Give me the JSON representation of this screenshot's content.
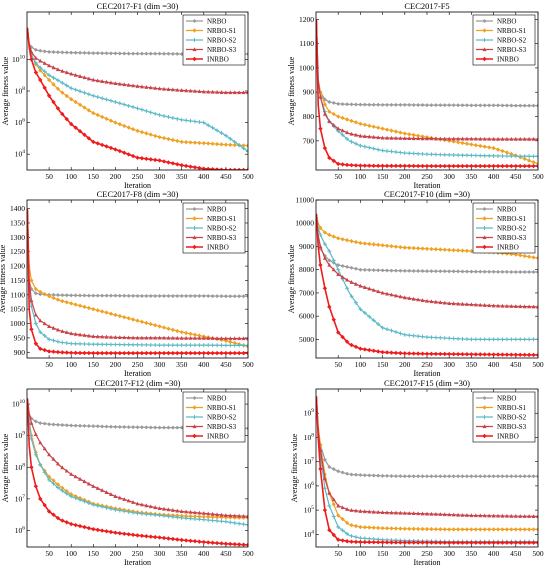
{
  "colors": {
    "NRBO": "#9a9a9a",
    "NRBO-S1": "#f0a020",
    "NRBO-S2": "#5cbac6",
    "NRBO-S3": "#c8434a",
    "INRBO": "#ee1c1c"
  },
  "legend_entries": [
    "NRBO",
    "NRBO-S1",
    "NRBO-S2",
    "NRBO-S3",
    "INRBO"
  ],
  "chart_data": [
    {
      "type": "line",
      "title": "CEC2017-F1 (dim =30)",
      "xlabel": "Iteration",
      "ylabel": "Average fitness value",
      "xlim": [
        0,
        500
      ],
      "yscale": "log",
      "ylim": [
        1000,
        10000000000000
      ],
      "xticks": [
        50,
        100,
        150,
        200,
        250,
        300,
        350,
        400,
        450,
        500
      ],
      "yticks": [
        {
          "value": 10000,
          "base": "10",
          "exp": "4"
        },
        {
          "value": 1000000,
          "base": "10",
          "exp": "6"
        },
        {
          "value": 100000000,
          "base": "10",
          "exp": "8"
        },
        {
          "value": 10000000000,
          "base": "10",
          "exp": "10"
        }
      ],
      "legend": "top-right",
      "x": [
        1,
        5,
        10,
        20,
        30,
        50,
        75,
        100,
        150,
        200,
        250,
        300,
        350,
        400,
        450,
        500
      ],
      "series": [
        {
          "name": "NRBO",
          "values": [
            1000000000000,
            100000000000,
            60000000000,
            40000000000,
            35000000000,
            30000000000,
            28000000000,
            27000000000,
            25000000000,
            24000000000,
            23000000000,
            23000000000,
            22000000000,
            22000000000,
            22000000000,
            22000000000
          ]
        },
        {
          "name": "NRBO-S1",
          "values": [
            1000000000000,
            100000000000,
            20000000000,
            5000000000,
            2000000000,
            500000000,
            100000000,
            30000000,
            4000000,
            1000000,
            300000,
            120000,
            60000,
            50000,
            40000,
            35000
          ]
        },
        {
          "name": "NRBO-S2",
          "values": [
            1000000000000,
            100000000000,
            20000000000,
            6000000000,
            3000000000,
            1000000000,
            400000000,
            150000000,
            50000000,
            20000000,
            8000000,
            3000000,
            1500000,
            1000000,
            150000,
            15000
          ]
        },
        {
          "name": "NRBO-S3",
          "values": [
            1000000000000,
            100000000000,
            30000000000,
            12000000000,
            8000000000,
            4000000000,
            2000000000,
            1200000000,
            500000000,
            300000000,
            200000000,
            140000000,
            110000000,
            90000000,
            80000000,
            80000000
          ]
        },
        {
          "name": "INRBO",
          "values": [
            1000000000000,
            60000000000,
            10000000000,
            1500000000,
            500000000,
            50000000,
            5000000,
            800000,
            60000,
            20000,
            6000,
            4000,
            2000,
            1200,
            1000,
            1000
          ]
        }
      ]
    },
    {
      "type": "line",
      "title": "CEC2017-F5",
      "xlabel": "Iteration",
      "ylabel": "Average fitness value",
      "xlim": [
        0,
        500
      ],
      "yscale": "linear",
      "ylim": [
        580,
        1230
      ],
      "xticks": [
        50,
        100,
        150,
        200,
        250,
        300,
        350,
        400,
        450,
        500
      ],
      "yticks": [
        {
          "value": 700,
          "label": "700"
        },
        {
          "value": 800,
          "label": "800"
        },
        {
          "value": 900,
          "label": "900"
        },
        {
          "value": 1000,
          "label": "1000"
        },
        {
          "value": 1100,
          "label": "1100"
        },
        {
          "value": 1200,
          "label": "1200"
        }
      ],
      "legend": "top-right",
      "x": [
        1,
        5,
        10,
        20,
        30,
        50,
        75,
        100,
        150,
        200,
        250,
        300,
        350,
        400,
        450,
        500
      ],
      "series": [
        {
          "name": "NRBO",
          "values": [
            1200,
            950,
            900,
            870,
            860,
            852,
            850,
            849,
            848,
            848,
            847,
            847,
            846,
            846,
            845,
            845
          ]
        },
        {
          "name": "NRBO-S1",
          "values": [
            1200,
            950,
            900,
            850,
            820,
            800,
            785,
            770,
            750,
            730,
            715,
            700,
            685,
            670,
            640,
            605
          ]
        },
        {
          "name": "NRBO-S2",
          "values": [
            1200,
            950,
            880,
            820,
            780,
            740,
            700,
            680,
            660,
            650,
            645,
            642,
            640,
            638,
            637,
            636
          ]
        },
        {
          "name": "NRBO-S3",
          "values": [
            1200,
            950,
            880,
            810,
            780,
            750,
            730,
            720,
            712,
            710,
            709,
            708,
            708,
            707,
            707,
            707
          ]
        },
        {
          "name": "INRBO",
          "values": [
            1200,
            850,
            750,
            670,
            630,
            605,
            600,
            598,
            597,
            597,
            596,
            596,
            596,
            596,
            596,
            596
          ]
        }
      ]
    },
    {
      "type": "line",
      "title": "CEC2017-F8 (dim =30)",
      "xlabel": "Iteration",
      "ylabel": "Average fitness value",
      "xlim": [
        0,
        500
      ],
      "yscale": "linear",
      "ylim": [
        880,
        1430
      ],
      "xticks": [
        50,
        100,
        150,
        200,
        250,
        300,
        350,
        400,
        450,
        500
      ],
      "yticks": [
        {
          "value": 900,
          "label": "900"
        },
        {
          "value": 950,
          "label": "950"
        },
        {
          "value": 1000,
          "label": "1000"
        },
        {
          "value": 1050,
          "label": "1050"
        },
        {
          "value": 1100,
          "label": "1100"
        },
        {
          "value": 1150,
          "label": "1150"
        },
        {
          "value": 1200,
          "label": "1200"
        },
        {
          "value": 1250,
          "label": "1250"
        },
        {
          "value": 1300,
          "label": "1300"
        },
        {
          "value": 1350,
          "label": "1350"
        },
        {
          "value": 1400,
          "label": "1400"
        }
      ],
      "legend": "top-right",
      "x": [
        1,
        5,
        10,
        20,
        30,
        50,
        75,
        100,
        150,
        200,
        250,
        300,
        350,
        400,
        450,
        500
      ],
      "series": [
        {
          "name": "NRBO",
          "values": [
            1400,
            1150,
            1120,
            1105,
            1102,
            1100,
            1099,
            1098,
            1097,
            1097,
            1096,
            1096,
            1096,
            1096,
            1095,
            1095
          ]
        },
        {
          "name": "NRBO-S1",
          "values": [
            1400,
            1200,
            1150,
            1120,
            1110,
            1095,
            1080,
            1070,
            1050,
            1030,
            1010,
            990,
            970,
            955,
            940,
            920
          ]
        },
        {
          "name": "NRBO-S2",
          "values": [
            1400,
            1120,
            1060,
            1000,
            970,
            945,
            935,
            930,
            928,
            927,
            926,
            925,
            925,
            925,
            924,
            924
          ]
        },
        {
          "name": "NRBO-S3",
          "values": [
            1400,
            1150,
            1080,
            1030,
            1010,
            990,
            975,
            965,
            955,
            952,
            950,
            950,
            949,
            949,
            948,
            948
          ]
        },
        {
          "name": "INRBO",
          "values": [
            1400,
            1050,
            980,
            930,
            912,
            903,
            900,
            898,
            897,
            897,
            897,
            897,
            897,
            897,
            897,
            897
          ]
        }
      ]
    },
    {
      "type": "line",
      "title": "CEC2017-F10 (dim =30)",
      "xlabel": "Iteration",
      "ylabel": "Average fitness value",
      "xlim": [
        0,
        500
      ],
      "yscale": "linear",
      "ylim": [
        4200,
        11000
      ],
      "xticks": [
        50,
        100,
        150,
        200,
        250,
        300,
        350,
        400,
        450,
        500
      ],
      "yticks": [
        {
          "value": 5000,
          "label": "5000"
        },
        {
          "value": 6000,
          "label": "6000"
        },
        {
          "value": 7000,
          "label": "7000"
        },
        {
          "value": 8000,
          "label": "8000"
        },
        {
          "value": 9000,
          "label": "9000"
        },
        {
          "value": 10000,
          "label": "10000"
        },
        {
          "value": 11000,
          "label": "11000"
        }
      ],
      "legend": "top-right",
      "x": [
        1,
        5,
        10,
        20,
        30,
        50,
        75,
        100,
        150,
        200,
        250,
        300,
        350,
        400,
        450,
        500
      ],
      "series": [
        {
          "name": "NRBO",
          "values": [
            10400,
            9300,
            8900,
            8600,
            8400,
            8200,
            8100,
            8000,
            7970,
            7950,
            7940,
            7930,
            7920,
            7910,
            7900,
            7900
          ]
        },
        {
          "name": "NRBO-S1",
          "values": [
            10400,
            10000,
            9800,
            9600,
            9500,
            9350,
            9250,
            9150,
            9050,
            8950,
            8900,
            8850,
            8800,
            8750,
            8650,
            8500
          ]
        },
        {
          "name": "NRBO-S2",
          "values": [
            10400,
            9800,
            9500,
            9100,
            8800,
            8000,
            7000,
            6300,
            5500,
            5200,
            5100,
            5050,
            5000,
            5000,
            5000,
            5000
          ]
        },
        {
          "name": "NRBO-S3",
          "values": [
            10400,
            9500,
            9000,
            8500,
            8200,
            7800,
            7500,
            7300,
            7000,
            6800,
            6650,
            6550,
            6500,
            6450,
            6420,
            6400
          ]
        },
        {
          "name": "INRBO",
          "values": [
            10400,
            9000,
            8200,
            7200,
            6400,
            5300,
            4800,
            4600,
            4450,
            4400,
            4380,
            4370,
            4360,
            4350,
            4340,
            4330
          ]
        }
      ]
    },
    {
      "type": "line",
      "title": "CEC2017-F12 (dim =30)",
      "xlabel": "Iteration",
      "ylabel": "Average fitness value",
      "xlim": [
        0,
        500
      ],
      "yscale": "log",
      "ylim": [
        300000,
        30000000000
      ],
      "xticks": [
        50,
        100,
        150,
        200,
        250,
        300,
        350,
        400,
        450,
        500
      ],
      "yticks": [
        {
          "value": 1000000,
          "base": "10",
          "exp": "6"
        },
        {
          "value": 10000000,
          "base": "10",
          "exp": "7"
        },
        {
          "value": 100000000,
          "base": "10",
          "exp": "8"
        },
        {
          "value": 1000000000,
          "base": "10",
          "exp": "9"
        },
        {
          "value": 10000000000,
          "base": "10",
          "exp": "10"
        }
      ],
      "legend": "top-right",
      "x": [
        1,
        5,
        10,
        20,
        30,
        50,
        75,
        100,
        150,
        200,
        250,
        300,
        350,
        400,
        450,
        500
      ],
      "series": [
        {
          "name": "NRBO",
          "values": [
            15000000000,
            5000000000,
            3500000000,
            2800000000,
            2500000000,
            2300000000,
            2200000000,
            2100000000,
            2000000000,
            1900000000,
            1850000000,
            1800000000,
            1800000000,
            1750000000,
            1750000000,
            1700000000
          ]
        },
        {
          "name": "NRBO-S1",
          "values": [
            15000000000,
            3000000000,
            1000000000,
            300000000,
            120000000,
            50000000,
            25000000,
            14000000,
            7000000,
            5000000,
            3800000,
            3200000,
            2900000,
            2700000,
            2600000,
            2500000
          ]
        },
        {
          "name": "NRBO-S2",
          "values": [
            15000000000,
            3000000000,
            800000000,
            250000000,
            120000000,
            40000000,
            20000000,
            12000000,
            6500000,
            4500000,
            3500000,
            3000000,
            2500000,
            2200000,
            1900000,
            1500000
          ]
        },
        {
          "name": "NRBO-S3",
          "values": [
            15000000000,
            5000000000,
            2500000000,
            1100000000,
            600000000,
            250000000,
            110000000,
            60000000,
            25000000,
            12000000,
            7000000,
            5000000,
            4000000,
            3500000,
            3000000,
            2800000
          ]
        },
        {
          "name": "INRBO",
          "values": [
            15000000000,
            500000000,
            100000000,
            25000000,
            10000000,
            4000000,
            2200000,
            1600000,
            1100000,
            850000,
            700000,
            600000,
            500000,
            430000,
            380000,
            350000
          ]
        }
      ]
    },
    {
      "type": "line",
      "title": "CEC2017-F15 (dim =30)",
      "xlabel": "Iteration",
      "ylabel": "Average fitness value",
      "xlim": [
        0,
        500
      ],
      "yscale": "log",
      "ylim": [
        3000,
        10000000000
      ],
      "xticks": [
        50,
        100,
        150,
        200,
        250,
        300,
        350,
        400,
        450,
        500
      ],
      "yticks": [
        {
          "value": 10000,
          "base": "10",
          "exp": "4"
        },
        {
          "value": 100000,
          "base": "10",
          "exp": "5"
        },
        {
          "value": 1000000,
          "base": "10",
          "exp": "6"
        },
        {
          "value": 10000000,
          "base": "10",
          "exp": "7"
        },
        {
          "value": 100000000,
          "base": "10",
          "exp": "8"
        },
        {
          "value": 1000000000,
          "base": "10",
          "exp": "9"
        }
      ],
      "legend": "top-right",
      "x": [
        1,
        5,
        10,
        20,
        30,
        50,
        75,
        100,
        150,
        200,
        250,
        300,
        350,
        400,
        450,
        500
      ],
      "series": [
        {
          "name": "NRBO",
          "values": [
            5000000000,
            200000000,
            50000000,
            12000000,
            6000000,
            4000000,
            3000000,
            2800000,
            2600000,
            2500000,
            2500000,
            2500000,
            2500000,
            2500000,
            2500000,
            2500000
          ]
        },
        {
          "name": "NRBO-S1",
          "values": [
            5000000000,
            300000000,
            50000000,
            3000000,
            500000,
            60000,
            25000,
            20000,
            18000,
            17000,
            16500,
            16000,
            16000,
            16000,
            16000,
            16000
          ]
        },
        {
          "name": "NRBO-S2",
          "values": [
            5000000000,
            200000000,
            20000000,
            800000,
            150000,
            20000,
            9000,
            7000,
            6000,
            5500,
            5200,
            5000,
            5000,
            5000,
            5000,
            5000
          ]
        },
        {
          "name": "NRBO-S3",
          "values": [
            5000000000,
            200000000,
            30000000,
            2000000,
            500000,
            150000,
            100000,
            90000,
            80000,
            75000,
            70000,
            65000,
            60000,
            58000,
            56000,
            55000
          ]
        },
        {
          "name": "INRBO",
          "values": [
            5000000000,
            100000000,
            5000000,
            100000,
            15000,
            6000,
            5000,
            4800,
            4700,
            4600,
            4600,
            4500,
            4500,
            4500,
            4500,
            4500
          ]
        }
      ]
    }
  ]
}
